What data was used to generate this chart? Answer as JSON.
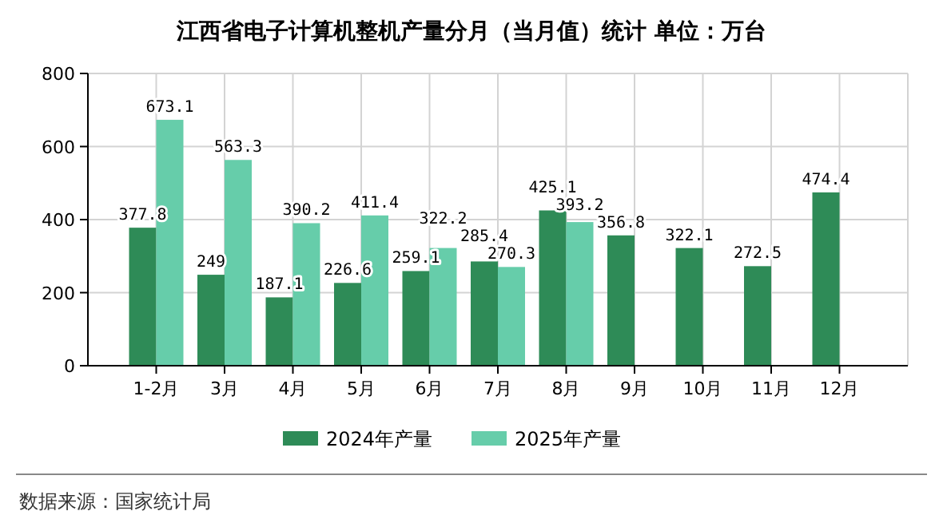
{
  "chart_data": {
    "type": "bar",
    "title": "江西省电子计算机整机产量分月（当月值）统计 单位：万台",
    "categories": [
      "1-2月",
      "3月",
      "4月",
      "5月",
      "6月",
      "7月",
      "8月",
      "9月",
      "10月",
      "11月",
      "12月"
    ],
    "series": [
      {
        "name": "2024年产量",
        "color": "#2e8b57",
        "values": [
          377.8,
          249,
          187.1,
          226.6,
          259.1,
          285.4,
          425.1,
          356.8,
          322.1,
          272.5,
          474.4
        ]
      },
      {
        "name": "2025年产量",
        "color": "#66cdaa",
        "values": [
          673.1,
          563.3,
          390.2,
          411.4,
          322.2,
          270.3,
          393.2,
          null,
          null,
          null,
          null
        ]
      }
    ],
    "ylim": [
      0,
      800
    ],
    "yticks": [
      0,
      200,
      400,
      600,
      800
    ],
    "grid": true,
    "legend": "bottom",
    "data_labels": true,
    "annotations": [
      "数据来源：国家统计局"
    ]
  }
}
